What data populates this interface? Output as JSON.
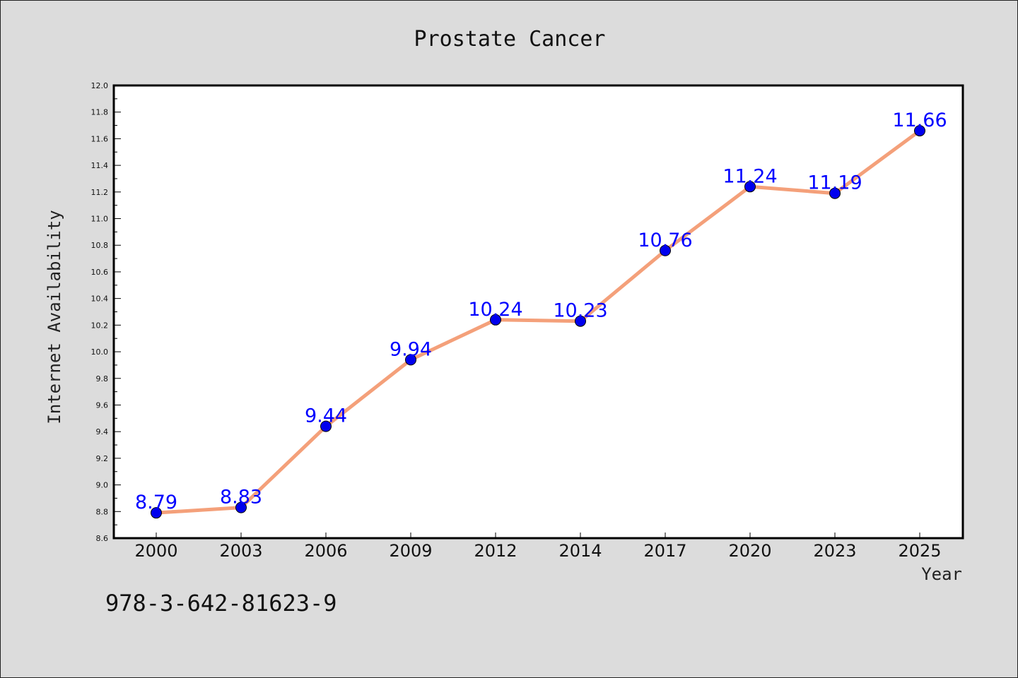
{
  "chart_data": {
    "type": "line",
    "title": "Prostate Cancer",
    "xlabel": "Year",
    "ylabel": "Internet Availability",
    "categories": [
      "2000",
      "2003",
      "2006",
      "2009",
      "2012",
      "2014",
      "2017",
      "2020",
      "2023",
      "2025"
    ],
    "series": [
      {
        "values": [
          8.79,
          8.83,
          9.44,
          9.94,
          10.24,
          10.23,
          10.76,
          11.24,
          11.19,
          11.66
        ],
        "labels": [
          "8.79",
          "8.83",
          "9.44",
          "9.94",
          "10.24",
          "10.23",
          "10.76",
          "11.24",
          "11.19",
          "11.66"
        ]
      }
    ],
    "ylim": [
      8.6,
      12.0
    ],
    "yticks": [
      "8.6",
      "8.8",
      "9.0",
      "9.2",
      "9.4",
      "9.6",
      "9.8",
      "10.0",
      "10.2",
      "10.4",
      "10.6",
      "10.8",
      "11.0",
      "11.2",
      "11.4",
      "11.6",
      "11.8",
      "12.0"
    ],
    "grid": false,
    "line_color": "#f4a07a",
    "marker_color": "#0000ee",
    "label_color": "#0000ff"
  },
  "footer_text": "978-3-642-81623-9",
  "colors": {
    "background": "#dcdcdc",
    "plot_background": "#ffffff"
  }
}
